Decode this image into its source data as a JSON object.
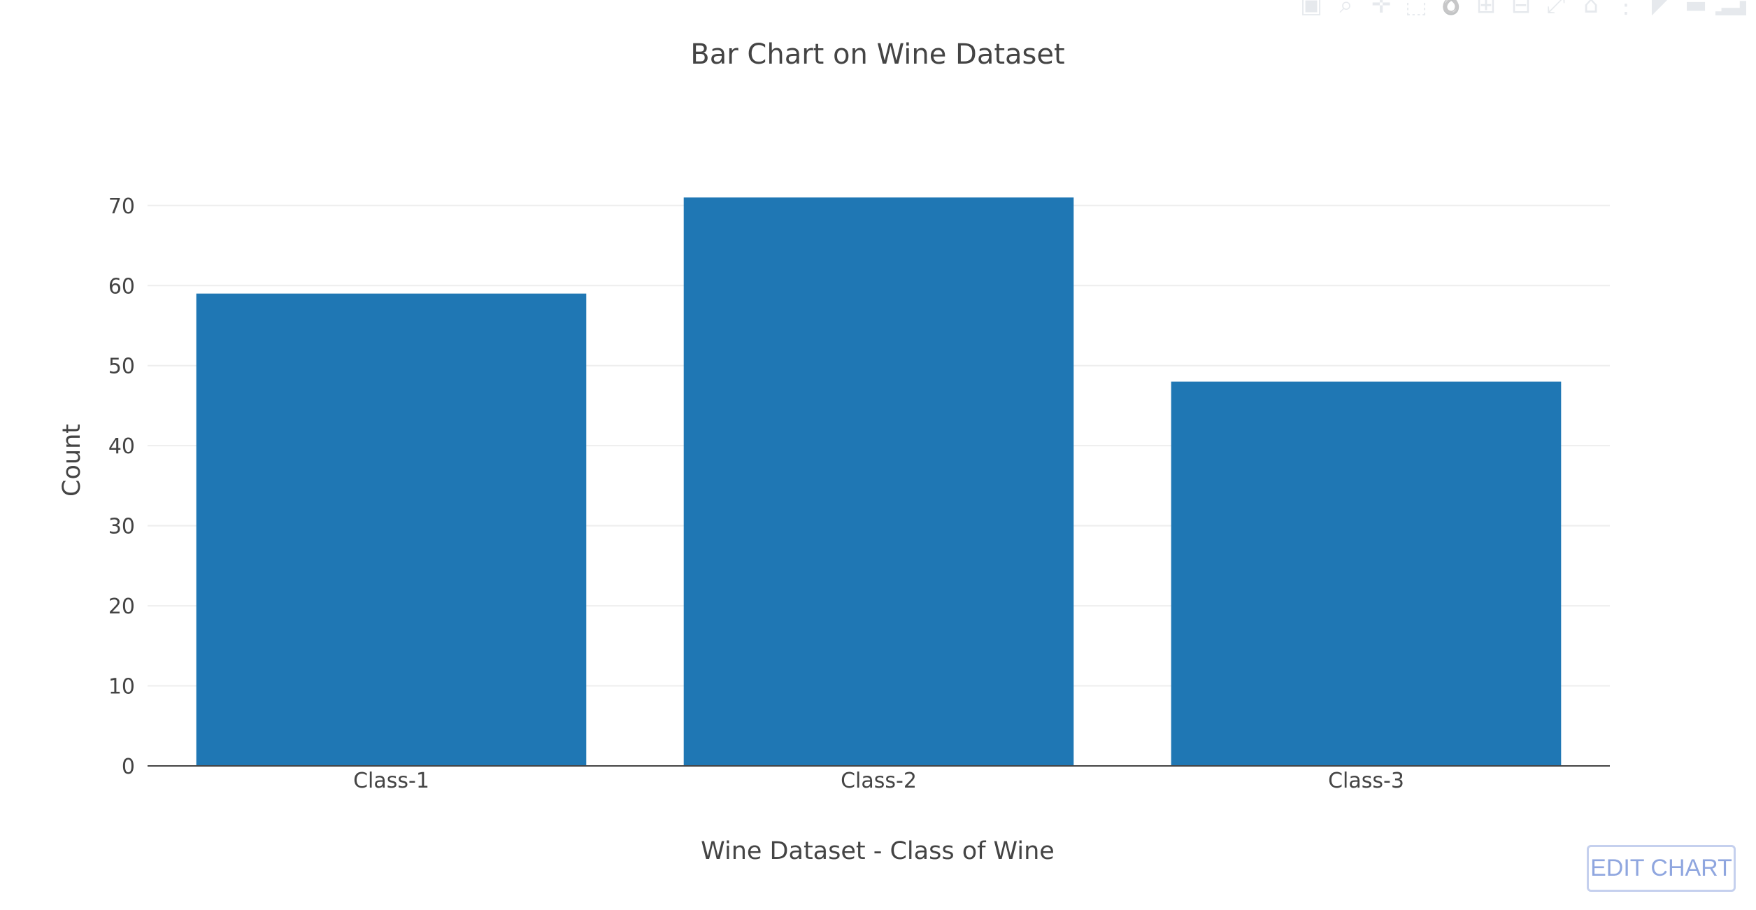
{
  "modebar": {
    "icons": [
      {
        "name": "camera-icon",
        "glyph": "▣"
      },
      {
        "name": "zoom-icon",
        "glyph": "⌕"
      },
      {
        "name": "pan-icon",
        "glyph": "✛"
      },
      {
        "name": "box-select-icon",
        "glyph": "⬚"
      },
      {
        "name": "lasso-select-icon",
        "glyph": "➰"
      },
      {
        "name": "zoom-in-icon",
        "glyph": "⊞"
      },
      {
        "name": "zoom-out-icon",
        "glyph": "⊟"
      },
      {
        "name": "autoscale-icon",
        "glyph": "⤢"
      },
      {
        "name": "reset-axes-icon",
        "glyph": "⌂"
      },
      {
        "name": "spike-lines-icon",
        "glyph": "⋮"
      },
      {
        "name": "hover-closest-icon",
        "glyph": "◤"
      },
      {
        "name": "hover-compare-icon",
        "glyph": "▬"
      },
      {
        "name": "plotly-logo-icon",
        "glyph": "▁▂▃▅▇"
      }
    ]
  },
  "edit_button": {
    "label": "EDIT CHART"
  },
  "colors": {
    "bar": "#1f77b4",
    "grid": "#eeeeee",
    "axis_line": "#444444",
    "text": "#444444"
  },
  "chart_data": {
    "type": "bar",
    "title": "Bar Chart on Wine Dataset",
    "xlabel": "Wine Dataset - Class of Wine",
    "ylabel": "Count",
    "categories": [
      "Class-1",
      "Class-2",
      "Class-3"
    ],
    "values": [
      59,
      71,
      48
    ],
    "ylim": [
      0,
      74.7
    ],
    "yticks": [
      0,
      10,
      20,
      30,
      40,
      50,
      60,
      70
    ],
    "grid": true,
    "legend": "none"
  }
}
